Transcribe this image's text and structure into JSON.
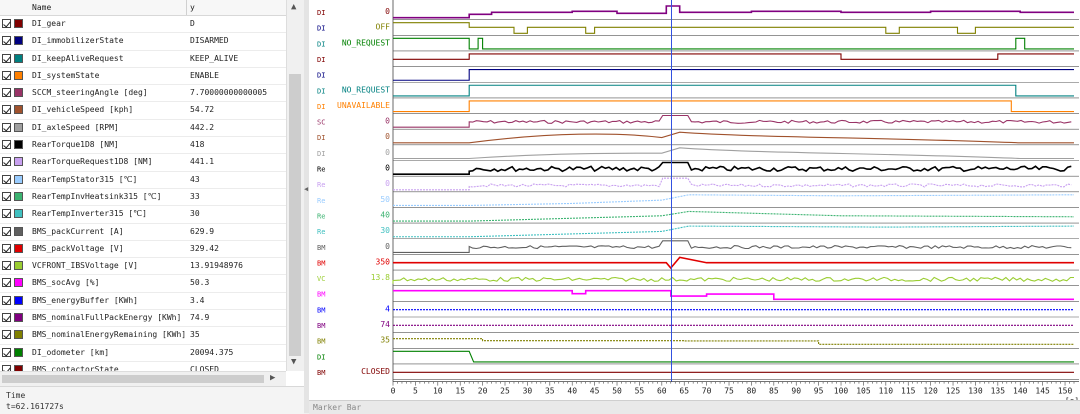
{
  "table": {
    "header": {
      "name": "Name",
      "value": "y"
    },
    "rows": [
      {
        "name": "DI_gear",
        "value": "D",
        "color": "#800000"
      },
      {
        "name": "DI_immobilizerState",
        "value": "DISARMED",
        "color": "#000080"
      },
      {
        "name": "DI_keepAliveRequest",
        "value": "KEEP_ALIVE",
        "color": "#008080"
      },
      {
        "name": "DI_systemState",
        "value": "ENABLE",
        "color": "#ff8000"
      },
      {
        "name": "SCCM_steeringAngle [deg]",
        "value": "7.70000000000005",
        "color": "#993366"
      },
      {
        "name": "DI_vehicleSpeed [kph]",
        "value": "54.72",
        "color": "#a0522d"
      },
      {
        "name": "DI_axleSpeed [RPM]",
        "value": "442.2",
        "color": "#a0a0a0"
      },
      {
        "name": "RearTorque1D8 [NM]",
        "value": "418",
        "color": "#000000"
      },
      {
        "name": "RearTorqueRequest1D8 [NM]",
        "value": "441.1",
        "color": "#c8a0f0"
      },
      {
        "name": "RearTempStator315 [℃]",
        "value": "43",
        "color": "#99ccff"
      },
      {
        "name": "RearTempInvHeatsink315 [℃]",
        "value": "33",
        "color": "#3cb371"
      },
      {
        "name": "RearTempInverter315 [℃]",
        "value": "30",
        "color": "#40c0c0"
      },
      {
        "name": "BMS_packCurrent [A]",
        "value": "629.9",
        "color": "#606060"
      },
      {
        "name": "BMS_packVoltage [V]",
        "value": "329.42",
        "color": "#e00000"
      },
      {
        "name": "VCFRONT_IBSVoltage [V]",
        "value": "13.91948976",
        "color": "#9acd32"
      },
      {
        "name": "BMS_socAvg [%]",
        "value": "50.3",
        "color": "#ff00ff"
      },
      {
        "name": "BMS_energyBuffer [KWh]",
        "value": "3.4",
        "color": "#0000ff"
      },
      {
        "name": "BMS_nominalFullPackEnergy [KWh]",
        "value": "74.9",
        "color": "#800080"
      },
      {
        "name": "BMS_nominalEnergyRemaining [KWh]",
        "value": "35",
        "color": "#808000"
      },
      {
        "name": "DI_odometer [km]",
        "value": "20094.375",
        "color": "#008000"
      },
      {
        "name": "BMS_contactorState",
        "value": "CLOSED",
        "color": "#800000"
      }
    ]
  },
  "status": {
    "label": "Time",
    "time": "t=62.161727s"
  },
  "footer": {
    "marker_bar": "Marker Bar"
  },
  "chart_data": {
    "type": "line",
    "xlabel": "[s]",
    "xlim": [
      0,
      152
    ],
    "x_ticks": [
      0,
      5,
      10,
      15,
      20,
      25,
      30,
      35,
      40,
      45,
      50,
      55,
      60,
      65,
      70,
      75,
      80,
      85,
      90,
      95,
      100,
      105,
      110,
      115,
      120,
      125,
      130,
      135,
      140,
      145,
      150
    ],
    "cursor_x": 62.16,
    "lanes": [
      {
        "tag": "DI",
        "tag_color": "#800000",
        "value_label": "0",
        "label_color": "#800000",
        "color": "#800080"
      },
      {
        "tag": "DI",
        "tag_color": "#000080",
        "value_label": "OFF",
        "label_color": "#808000",
        "color": "#808000"
      },
      {
        "tag": "DI",
        "tag_color": "#008080",
        "value_label": "NO_REQUEST",
        "label_color": "#008000",
        "color": "#008000"
      },
      {
        "tag": "DI",
        "tag_color": "#800000",
        "value_label": "",
        "label_color": "#800000",
        "color": "#800000"
      },
      {
        "tag": "DI",
        "tag_color": "#000080",
        "value_label": "",
        "label_color": "#000080",
        "color": "#000080"
      },
      {
        "tag": "DI",
        "tag_color": "#008080",
        "value_label": "NO_REQUEST",
        "label_color": "#008080",
        "color": "#008080"
      },
      {
        "tag": "DI",
        "tag_color": "#ff8000",
        "value_label": "UNAVAILABLE",
        "label_color": "#ff8000",
        "color": "#ff8000"
      },
      {
        "tag": "SC",
        "tag_color": "#993366",
        "value_label": "0",
        "label_color": "#993366",
        "color": "#993366"
      },
      {
        "tag": "DI",
        "tag_color": "#a0522d",
        "value_label": "0",
        "label_color": "#a0522d",
        "color": "#a0522d"
      },
      {
        "tag": "DI",
        "tag_color": "#a0a0a0",
        "value_label": "0",
        "label_color": "#a0a0a0",
        "color": "#a0a0a0"
      },
      {
        "tag": "Re",
        "tag_color": "#000000",
        "value_label": "0",
        "label_color": "#000000",
        "color": "#000000"
      },
      {
        "tag": "Re",
        "tag_color": "#c8a0f0",
        "value_label": "0",
        "label_color": "#c8a0f0",
        "color": "#c8a0f0"
      },
      {
        "tag": "Re",
        "tag_color": "#99ccff",
        "value_label": "50",
        "label_color": "#99ccff",
        "color": "#99ccff"
      },
      {
        "tag": "Re",
        "tag_color": "#3cb371",
        "value_label": "40",
        "label_color": "#3cb371",
        "color": "#3cb371"
      },
      {
        "tag": "Re",
        "tag_color": "#40c0c0",
        "value_label": "30",
        "label_color": "#40c0c0",
        "color": "#40c0c0"
      },
      {
        "tag": "BM",
        "tag_color": "#606060",
        "value_label": "0",
        "label_color": "#606060",
        "color": "#606060"
      },
      {
        "tag": "BM",
        "tag_color": "#e00000",
        "value_label": "350",
        "label_color": "#e00000",
        "color": "#e00000"
      },
      {
        "tag": "VC",
        "tag_color": "#9acd32",
        "value_label": "13.8",
        "label_color": "#9acd32",
        "color": "#9acd32"
      },
      {
        "tag": "BM",
        "tag_color": "#ff00ff",
        "value_label": "",
        "label_color": "#ff00ff",
        "color": "#ff00ff"
      },
      {
        "tag": "BM",
        "tag_color": "#0000ff",
        "value_label": "4",
        "label_color": "#0000ff",
        "color": "#0000ff"
      },
      {
        "tag": "BM",
        "tag_color": "#800080",
        "value_label": "74",
        "label_color": "#800080",
        "color": "#800080"
      },
      {
        "tag": "BM",
        "tag_color": "#808000",
        "value_label": "35",
        "label_color": "#808000",
        "color": "#808000"
      },
      {
        "tag": "DI",
        "tag_color": "#008000",
        "value_label": "",
        "label_color": "#008000",
        "color": "#008000"
      },
      {
        "tag": "BM",
        "tag_color": "#800000",
        "value_label": "CLOSED",
        "label_color": "#800000",
        "color": "#800000"
      }
    ]
  }
}
